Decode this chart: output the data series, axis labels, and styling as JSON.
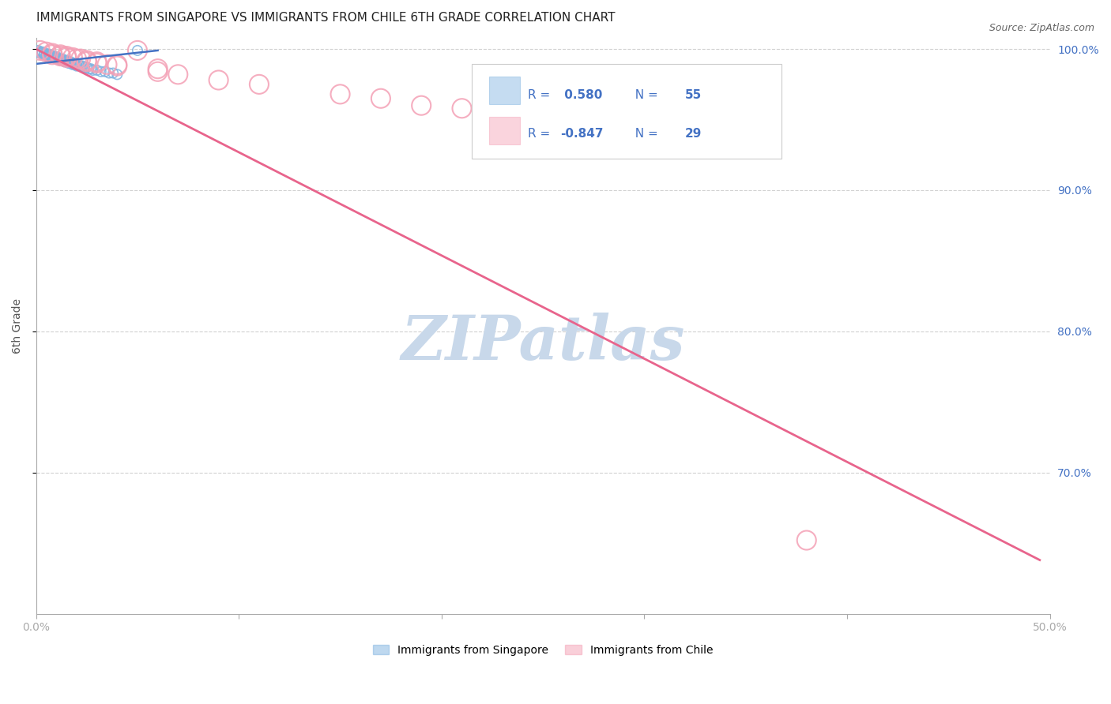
{
  "title": "IMMIGRANTS FROM SINGAPORE VS IMMIGRANTS FROM CHILE 6TH GRADE CORRELATION CHART",
  "source": "Source: ZipAtlas.com",
  "ylabel": "6th Grade",
  "x_min": 0.0,
  "x_max": 0.5,
  "y_min": 0.6,
  "y_max": 1.008,
  "x_ticks": [
    0.0,
    0.1,
    0.2,
    0.3,
    0.4,
    0.5
  ],
  "x_tick_labels": [
    "0.0%",
    "",
    "",
    "",
    "",
    "50.0%"
  ],
  "y_ticks": [
    0.7,
    0.8,
    0.9,
    1.0
  ],
  "y_tick_labels": [
    "70.0%",
    "80.0%",
    "90.0%",
    "100.0%"
  ],
  "singapore_color": "#7fb3e0",
  "chile_color": "#f4a0b5",
  "singapore_line_color": "#4472c4",
  "chile_line_color": "#e8648c",
  "watermark": "ZIPatlas",
  "watermark_color": "#c8d8ea",
  "background_color": "#ffffff",
  "grid_color": "#cccccc",
  "right_axis_color": "#4472c4",
  "legend_text_color": "#4472c4",
  "singapore_points": [
    [
      0.001,
      0.998
    ],
    [
      0.002,
      0.997
    ],
    [
      0.003,
      0.997
    ],
    [
      0.004,
      0.996
    ],
    [
      0.005,
      0.996
    ],
    [
      0.006,
      0.995
    ],
    [
      0.007,
      0.995
    ],
    [
      0.008,
      0.994
    ],
    [
      0.009,
      0.994
    ],
    [
      0.01,
      0.993
    ],
    [
      0.011,
      0.993
    ],
    [
      0.012,
      0.992
    ],
    [
      0.013,
      0.992
    ],
    [
      0.014,
      0.991
    ],
    [
      0.015,
      0.991
    ],
    [
      0.016,
      0.99
    ],
    [
      0.017,
      0.99
    ],
    [
      0.018,
      0.989
    ],
    [
      0.019,
      0.989
    ],
    [
      0.02,
      0.988
    ],
    [
      0.001,
      0.999
    ],
    [
      0.002,
      0.998
    ],
    [
      0.003,
      0.998
    ],
    [
      0.004,
      0.997
    ],
    [
      0.005,
      0.997
    ],
    [
      0.006,
      0.996
    ],
    [
      0.007,
      0.996
    ],
    [
      0.008,
      0.995
    ],
    [
      0.009,
      0.995
    ],
    [
      0.01,
      0.994
    ],
    [
      0.011,
      0.994
    ],
    [
      0.012,
      0.993
    ],
    [
      0.013,
      0.993
    ],
    [
      0.014,
      0.992
    ],
    [
      0.015,
      0.992
    ],
    [
      0.016,
      0.991
    ],
    [
      0.017,
      0.991
    ],
    [
      0.018,
      0.99
    ],
    [
      0.019,
      0.99
    ],
    [
      0.02,
      0.989
    ],
    [
      0.021,
      0.989
    ],
    [
      0.022,
      0.988
    ],
    [
      0.023,
      0.988
    ],
    [
      0.024,
      0.987
    ],
    [
      0.025,
      0.987
    ],
    [
      0.026,
      0.986
    ],
    [
      0.027,
      0.986
    ],
    [
      0.028,
      0.985
    ],
    [
      0.03,
      0.985
    ],
    [
      0.032,
      0.984
    ],
    [
      0.034,
      0.984
    ],
    [
      0.036,
      0.983
    ],
    [
      0.038,
      0.983
    ],
    [
      0.04,
      0.982
    ],
    [
      0.05,
      0.999
    ]
  ],
  "chile_points": [
    [
      0.002,
      0.999
    ],
    [
      0.005,
      0.998
    ],
    [
      0.008,
      0.997
    ],
    [
      0.012,
      0.996
    ],
    [
      0.015,
      0.995
    ],
    [
      0.018,
      0.994
    ],
    [
      0.022,
      0.993
    ],
    [
      0.025,
      0.992
    ],
    [
      0.03,
      0.991
    ],
    [
      0.04,
      0.989
    ],
    [
      0.06,
      0.986
    ],
    [
      0.008,
      0.996
    ],
    [
      0.012,
      0.995
    ],
    [
      0.015,
      0.994
    ],
    [
      0.02,
      0.993
    ],
    [
      0.025,
      0.991
    ],
    [
      0.03,
      0.99
    ],
    [
      0.035,
      0.989
    ],
    [
      0.04,
      0.988
    ],
    [
      0.06,
      0.984
    ],
    [
      0.07,
      0.982
    ],
    [
      0.09,
      0.978
    ],
    [
      0.11,
      0.975
    ],
    [
      0.15,
      0.968
    ],
    [
      0.17,
      0.965
    ],
    [
      0.19,
      0.96
    ],
    [
      0.21,
      0.958
    ],
    [
      0.38,
      0.652
    ],
    [
      0.05,
      0.999
    ]
  ],
  "singapore_line": [
    [
      0.0,
      0.9895
    ],
    [
      0.06,
      0.999
    ]
  ],
  "chile_line": [
    [
      0.0,
      1.0
    ],
    [
      0.495,
      0.638
    ]
  ]
}
